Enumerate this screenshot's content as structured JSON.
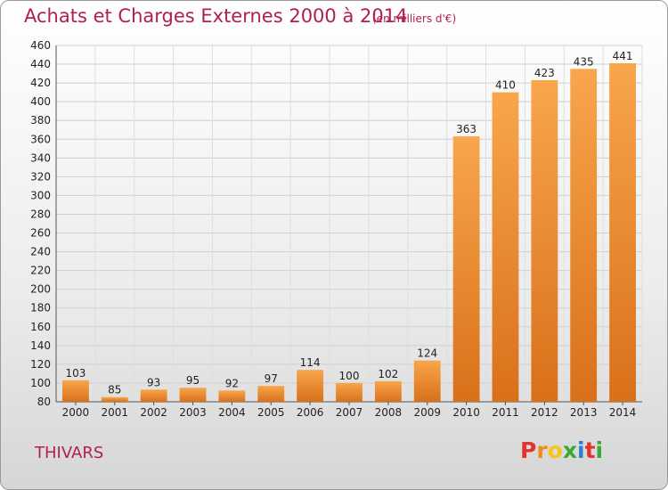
{
  "header": {
    "title": "Achats et Charges Externes 2000 à 2014",
    "subtitle": "(en milliers d'€)"
  },
  "footer": {
    "place": "THIVARS",
    "logo_letters": [
      "P",
      "r",
      "o",
      "x",
      "i",
      "t",
      "i"
    ]
  },
  "colors": {
    "title": "#b0204f",
    "bar_light": "#f8a64c",
    "bar_dark": "#d9701a",
    "logo": [
      "#e3342f",
      "#f28c1b",
      "#f5c518",
      "#3aa935",
      "#2a7fd4",
      "#e3342f",
      "#3aa935"
    ]
  },
  "chart_data": {
    "type": "bar",
    "title": "Achats et Charges Externes 2000 à 2014",
    "subtitle": "(en milliers d'€)",
    "categories": [
      "2000",
      "2001",
      "2002",
      "2003",
      "2004",
      "2005",
      "2006",
      "2007",
      "2008",
      "2009",
      "2010",
      "2011",
      "2012",
      "2013",
      "2014"
    ],
    "values": [
      103,
      85,
      93,
      95,
      92,
      97,
      114,
      100,
      102,
      124,
      363,
      410,
      423,
      435,
      441
    ],
    "ylim": [
      80,
      460
    ],
    "yticks": [
      80,
      100,
      120,
      140,
      160,
      180,
      200,
      220,
      240,
      260,
      280,
      300,
      320,
      340,
      360,
      380,
      400,
      420,
      440,
      460
    ],
    "grid": true
  }
}
